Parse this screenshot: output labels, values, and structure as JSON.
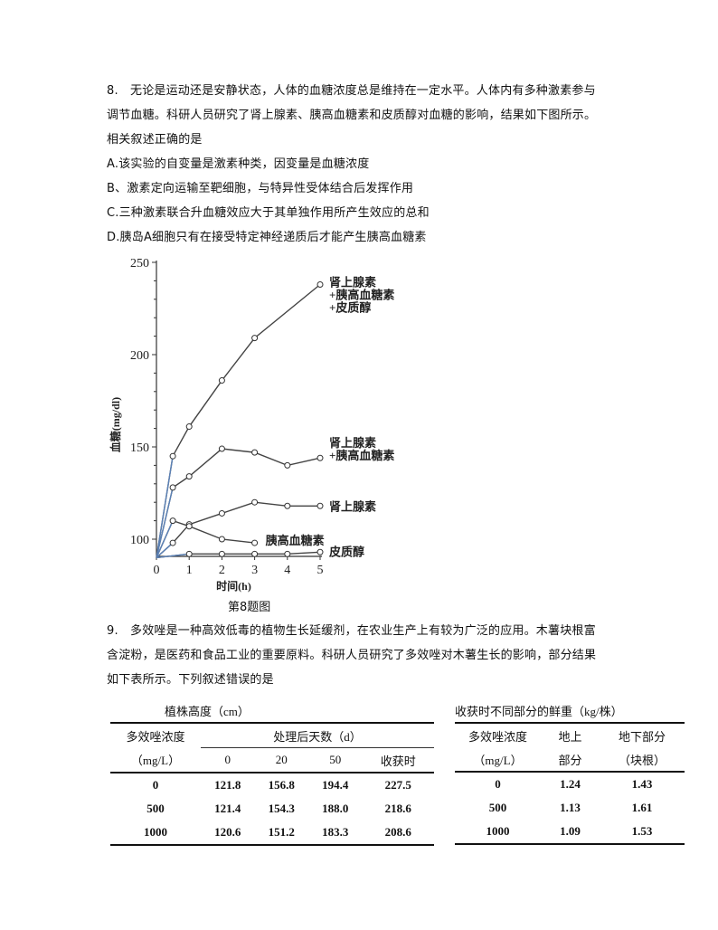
{
  "q8": {
    "lines": [
      "8.　无论是运动还是安静状态，人体的血糖浓度总是维持在一定水平。人体内有多种激素参与",
      "调节血糖。科研人员研究了肾上腺素、胰高血糖素和皮质醇对血糖的影响，结果如下图所示。",
      "相关叙述正确的是"
    ],
    "options": [
      "A.该实验的自变量是激素种类，因变量是血糖浓度",
      "B、激素定向运输至靶细胞，与特异性受体结合后发挥作用",
      "C.三种激素联合升血糖效应大于其单独作用所产生效应的总和",
      "D.胰岛A细胞只有在接受特定神经递质后才能产生胰高血糖素"
    ],
    "caption": "第8题图"
  },
  "chart_data": {
    "type": "line",
    "title": "",
    "xlabel": "时间(h)",
    "ylabel": "血糖(mg/dl)",
    "xlim": [
      0,
      5
    ],
    "ylim": [
      90,
      250
    ],
    "xticks": [
      0,
      1,
      2,
      3,
      4,
      5
    ],
    "yticks": [
      100,
      150,
      200,
      250
    ],
    "grid": false,
    "legend_position": "inline-right-labels",
    "series": [
      {
        "name": "肾上腺素+胰高血糖素+皮质醇",
        "label_lines": [
          "肾上腺素",
          "+胰高血糖素",
          "+皮质醇"
        ],
        "x": [
          0,
          0.5,
          1,
          2,
          3,
          5
        ],
        "values": [
          90,
          145,
          161,
          186,
          209,
          238
        ]
      },
      {
        "name": "肾上腺素+胰高血糖素",
        "label_lines": [
          "肾上腺素",
          "+胰高血糖素"
        ],
        "x": [
          0,
          0.5,
          1,
          2,
          3,
          4,
          5
        ],
        "values": [
          90,
          128,
          134,
          149,
          147,
          140,
          144
        ]
      },
      {
        "name": "肾上腺素",
        "label_lines": [
          "肾上腺素"
        ],
        "x": [
          0,
          0.5,
          1,
          2,
          3,
          4,
          5
        ],
        "values": [
          90,
          98,
          108,
          114,
          120,
          118,
          118
        ]
      },
      {
        "name": "胰高血糖素",
        "label_lines": [
          "胰高血糖素"
        ],
        "x": [
          0,
          0.5,
          1,
          2,
          3
        ],
        "values": [
          90,
          110,
          107,
          100,
          98
        ]
      },
      {
        "name": "皮质醇",
        "label_lines": [
          "皮质醇"
        ],
        "x": [
          0,
          1,
          2,
          3,
          4,
          5
        ],
        "values": [
          90,
          92,
          92,
          92,
          92,
          93
        ]
      }
    ]
  },
  "q9": {
    "lines": [
      "9.　多效唑是一种高效低毒的植物生长延缓剂，在农业生产上有较为广泛的应用。木薯块根富",
      "含淀粉，是医药和食品工业的重要原料。科研人员研究了多效唑对木薯生长的影响，部分结果",
      "如下表所示。下列叙述错误的是"
    ]
  },
  "table_height": {
    "title": "植株高度（cm）",
    "conc_header": [
      "多效唑浓度",
      "（mg/L）"
    ],
    "days_header": "处理后天数（d）",
    "columns": [
      "0",
      "20",
      "50",
      "收获时"
    ],
    "rows": [
      {
        "conc": "0",
        "values": [
          "121.8",
          "156.8",
          "194.4",
          "227.5"
        ]
      },
      {
        "conc": "500",
        "values": [
          "121.4",
          "154.3",
          "188.0",
          "218.6"
        ]
      },
      {
        "conc": "1000",
        "values": [
          "120.6",
          "151.2",
          "183.3",
          "208.6"
        ]
      }
    ]
  },
  "table_weight": {
    "title": "收获时不同部分的鲜重（kg/株）",
    "conc_header": [
      "多效唑浓度",
      "（mg/L）"
    ],
    "above_header": [
      "地上",
      "部分"
    ],
    "below_header": [
      "地下部分",
      "（块根）"
    ],
    "rows": [
      {
        "conc": "0",
        "above": "1.24",
        "below": "1.43"
      },
      {
        "conc": "500",
        "above": "1.13",
        "below": "1.61"
      },
      {
        "conc": "1000",
        "above": "1.09",
        "below": "1.53"
      }
    ]
  }
}
